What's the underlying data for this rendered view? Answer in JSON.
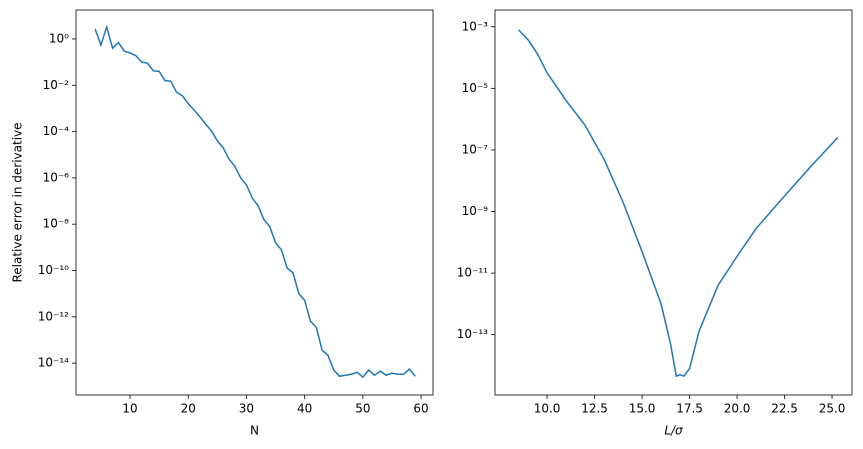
{
  "chart_data": [
    {
      "type": "line",
      "ylabel": "Relative error in derivative",
      "xlabel": "N",
      "log_y": true,
      "color": "#1f77b4",
      "x": [
        4,
        5,
        6,
        7,
        8,
        9,
        10,
        11,
        12,
        13,
        14,
        15,
        16,
        17,
        18,
        19,
        20,
        21,
        22,
        23,
        24,
        25,
        26,
        27,
        28,
        29,
        30,
        31,
        32,
        33,
        34,
        35,
        36,
        37,
        38,
        39,
        40,
        41,
        42,
        43,
        44,
        45,
        46,
        47,
        48,
        49,
        50,
        51,
        52,
        53,
        54,
        55,
        56,
        57,
        58,
        59
      ],
      "values": [
        2.7,
        0.55,
        3.3,
        0.4,
        0.7,
        0.3,
        0.25,
        0.19,
        0.1,
        0.09,
        0.042,
        0.04,
        0.016,
        0.015,
        0.005,
        0.0035,
        0.0016,
        0.00085,
        0.00043,
        0.00021,
        0.000105,
        4e-05,
        2e-05,
        6.5e-06,
        3.2e-06,
        1e-06,
        5e-07,
        1.35e-07,
        6.3e-08,
        1.6e-08,
        7.9e-09,
        1.6e-09,
        7.9e-10,
        1.26e-10,
        7.9e-11,
        1e-11,
        5.2e-12,
        6.5e-13,
        3.5e-13,
        3.6e-14,
        2.2e-14,
        5e-15,
        2.7e-15,
        3e-15,
        3.3e-15,
        4e-15,
        2.5e-15,
        5e-15,
        3e-15,
        4.5e-15,
        3e-15,
        3.7e-15,
        3.3e-15,
        3.3e-15,
        5.5e-15,
        2.7e-15
      ],
      "xlim": [
        0.72,
        62.05
      ],
      "ylim": [
        4.2e-16,
        17.8
      ],
      "xticks": [
        10,
        20,
        30,
        40,
        50,
        60
      ],
      "yticks": [
        {
          "value": 1,
          "label": "10⁰"
        },
        {
          "value": 0.01,
          "label": "10⁻²"
        },
        {
          "value": 0.0001,
          "label": "10⁻⁴"
        },
        {
          "value": 1e-06,
          "label": "10⁻⁶"
        },
        {
          "value": 1e-08,
          "label": "10⁻⁸"
        },
        {
          "value": 1e-10,
          "label": "10⁻¹⁰"
        },
        {
          "value": 1e-12,
          "label": "10⁻¹²"
        },
        {
          "value": 1e-14,
          "label": "10⁻¹⁴"
        }
      ]
    },
    {
      "type": "line",
      "xlabel": "L/σ",
      "log_y": true,
      "color": "#1f77b4",
      "x": [
        8.5,
        9,
        9.5,
        10,
        11,
        12,
        13,
        14,
        15,
        16,
        16.5,
        16.8,
        17,
        17.2,
        17.5,
        18,
        19,
        20,
        21,
        22.5,
        24,
        25.3
      ],
      "values": [
        0.00079,
        0.00038,
        0.00013,
        3.2e-05,
        4e-06,
        6.3e-07,
        5e-08,
        2e-09,
        5e-11,
        1e-12,
        5e-14,
        4.5e-15,
        5e-15,
        4.5e-15,
        7.9e-15,
        1.3e-13,
        4e-12,
        3.5e-11,
        2.8e-10,
        3.2e-09,
        3.5e-08,
        2.5e-07
      ],
      "xlim": [
        7.26,
        26.05
      ],
      "ylim": [
        1.1e-15,
        0.0035
      ],
      "xticks": [
        {
          "value": 10,
          "label": "10.0"
        },
        12.5,
        {
          "value": 15,
          "label": "15.0"
        },
        17.5,
        {
          "value": 20,
          "label": "20.0"
        },
        22.5,
        {
          "value": 25,
          "label": "25.0"
        }
      ],
      "yticks": [
        {
          "value": 0.001,
          "label": "10⁻³"
        },
        {
          "value": 1e-05,
          "label": "10⁻⁵"
        },
        {
          "value": 1e-07,
          "label": "10⁻⁷"
        },
        {
          "value": 1e-09,
          "label": "10⁻⁹"
        },
        {
          "value": 1e-11,
          "label": "10⁻¹¹"
        },
        {
          "value": 1e-13,
          "label": "10⁻¹³"
        }
      ]
    }
  ]
}
